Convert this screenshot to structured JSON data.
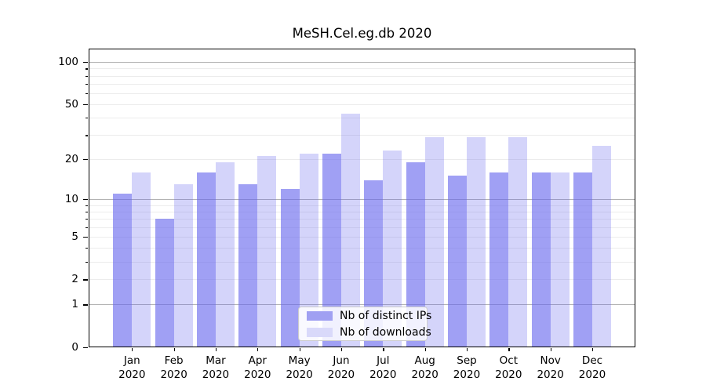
{
  "title": "MeSH.Cel.eg.db 2020",
  "colors": {
    "bar_distinct_ips": "rgba(102,102,238,0.62)",
    "bar_downloads": "rgba(102,102,238,0.28)",
    "legend_swatch_distinct_ips": "#a0a0f2",
    "legend_swatch_downloads": "#d9d9fa",
    "grid_major": "#b3b3b3",
    "grid_minor": "#ececec",
    "axis": "#000000",
    "text": "#000000"
  },
  "legend": {
    "items": [
      {
        "label": "Nb of distinct IPs"
      },
      {
        "label": "Nb of downloads"
      }
    ]
  },
  "chart_data": {
    "type": "bar",
    "title": "MeSH.Cel.eg.db 2020",
    "categories": [
      "Jan 2020",
      "Feb 2020",
      "Mar 2020",
      "Apr 2020",
      "May 2020",
      "Jun 2020",
      "Jul 2020",
      "Aug 2020",
      "Sep 2020",
      "Oct 2020",
      "Nov 2020",
      "Dec 2020"
    ],
    "series": [
      {
        "name": "Nb of distinct IPs",
        "values": [
          11,
          7,
          16,
          13,
          12,
          22,
          14,
          19,
          15,
          16,
          16,
          16
        ]
      },
      {
        "name": "Nb of downloads",
        "values": [
          16,
          13,
          19,
          21,
          22,
          43,
          23,
          29,
          29,
          29,
          16,
          25
        ]
      }
    ],
    "xlabel": "",
    "ylabel": "",
    "yscale": "log1p",
    "ylim": [
      0,
      125
    ],
    "y_major_ticks": [
      0,
      1,
      2,
      5,
      10,
      20,
      50,
      100
    ],
    "y_major_gridlines": [
      1,
      10,
      100
    ],
    "y_minor_gridlines": [
      2,
      3,
      4,
      5,
      6,
      7,
      8,
      9,
      20,
      30,
      40,
      50,
      60,
      70,
      80,
      90
    ],
    "grid": true,
    "legend_position": "lower center"
  }
}
